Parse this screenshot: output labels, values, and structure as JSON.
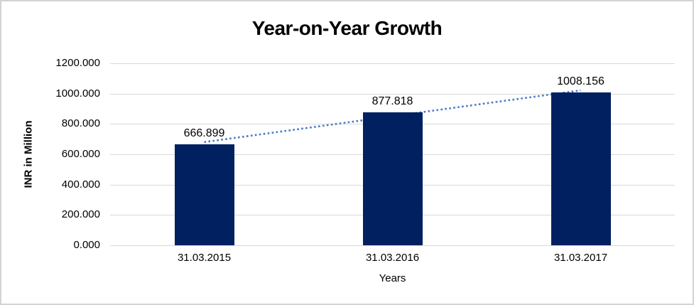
{
  "chart_data": {
    "type": "bar",
    "title": "Year-on-Year Growth",
    "xlabel": "Years",
    "ylabel": "INR in Million",
    "categories": [
      "31.03.2015",
      "31.03.2016",
      "31.03.2017"
    ],
    "values": [
      666.899,
      877.818,
      1008.156
    ],
    "data_labels": [
      "666.899",
      "877.818",
      "1008.156"
    ],
    "yticks": [
      0,
      200,
      400,
      600,
      800,
      1000,
      1200
    ],
    "ytick_labels": [
      "0.000",
      "200.000",
      "400.000",
      "600.000",
      "800.000",
      "1000.000",
      "1200.000"
    ],
    "ylim": [
      0,
      1200
    ],
    "grid": true,
    "legend": false,
    "trendline": "linear-dotted",
    "colors": {
      "bar": "#002060",
      "trendline": "#4a79c9",
      "gridline": "#d9d9d9",
      "text": "#000000"
    }
  }
}
